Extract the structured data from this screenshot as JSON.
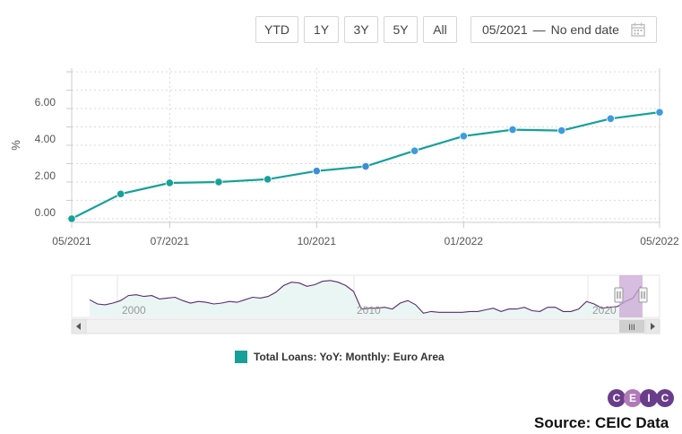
{
  "toolbar": {
    "buttons": [
      "YTD",
      "1Y",
      "3Y",
      "5Y",
      "All"
    ],
    "date_start": "05/2021",
    "date_sep": "—",
    "date_end": "No end date"
  },
  "navigator": {
    "year_labels": [
      "2000",
      "2010",
      "2020"
    ],
    "scroll_grip": "III",
    "values": [
      1.4,
      0.9,
      0.8,
      1.0,
      1.3,
      1.9,
      2.0,
      1.8,
      1.9,
      1.5,
      1.6,
      1.7,
      1.3,
      1.0,
      1.2,
      1.1,
      0.9,
      1.0,
      1.2,
      1.1,
      1.4,
      1.7,
      1.6,
      1.8,
      2.3,
      3.1,
      3.5,
      3.4,
      3.0,
      3.2,
      3.6,
      3.7,
      3.5,
      3.1,
      2.4,
      0.3,
      0.4,
      0.4,
      0.5,
      0.3,
      1.0,
      1.3,
      0.8,
      -0.2,
      0.0,
      -0.1,
      -0.1,
      -0.1,
      -0.1,
      0.0,
      0.0,
      0.2,
      0.4,
      0.0,
      0.3,
      0.3,
      0.5,
      0.1,
      0.0,
      0.5,
      0.5,
      0.0,
      0.0,
      0.3,
      1.2,
      0.9,
      0.4,
      0.5,
      0.6,
      1.2,
      1.6,
      3.0
    ],
    "colors": {
      "line": "#5b2a6e",
      "area": "#eaf6f4",
      "handle": "#c9a7d6"
    }
  },
  "legend": {
    "label": "Total Loans: YoY: Monthly: Euro Area"
  },
  "logo": {
    "letters": [
      "C",
      "E",
      "I",
      "C"
    ]
  },
  "source": "Source: CEIC Data",
  "chart_data": {
    "type": "line",
    "title": "",
    "xlabel": "",
    "ylabel": "%",
    "x": [
      "05/2021",
      "06/2021",
      "07/2021",
      "08/2021",
      "09/2021",
      "10/2021",
      "11/2021",
      "12/2021",
      "01/2022",
      "02/2022",
      "03/2022",
      "04/2022",
      "05/2022"
    ],
    "x_ticks": [
      "05/2021",
      "07/2021",
      "10/2021",
      "01/2022",
      "05/2022"
    ],
    "y_ticks": [
      "0.00",
      "2.00",
      "4.00",
      "6.00"
    ],
    "ylim": [
      -0.2,
      8.2
    ],
    "grid": true,
    "series": [
      {
        "name": "Total Loans: YoY: Monthly: Euro Area",
        "color": "#16a09a",
        "values": [
          0.0,
          1.35,
          1.95,
          2.0,
          2.15,
          2.6,
          2.85,
          3.7,
          4.5,
          4.85,
          4.8,
          5.45,
          5.8
        ]
      }
    ]
  }
}
